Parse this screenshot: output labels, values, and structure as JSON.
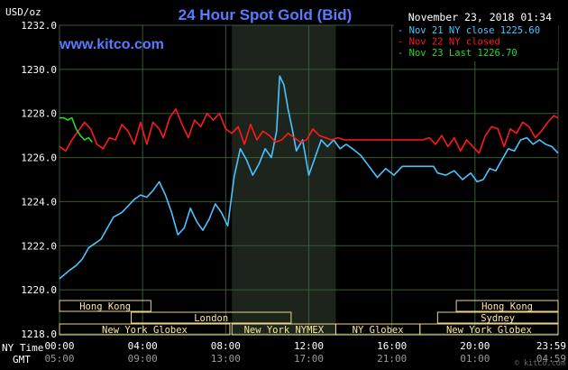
{
  "page": {
    "title": "24 Hour Spot Gold (Bid)",
    "website": "www.kitco.com",
    "date_label": "November 23, 2018 01:34",
    "y_unit": "USD/oz",
    "ny_time_label": "NY Time",
    "gmt_label": "GMT",
    "logo_text": "© kitco.com"
  },
  "colors": {
    "background": "#000000",
    "grid": "#3a5a3a",
    "axis_text": "#ffffff",
    "title": "#5a7bff",
    "website": "#5a7bff",
    "nov21": "#4cc3ff",
    "nov22": "#ff1a1a",
    "nov23": "#2bd52b",
    "session_box": "#e8d68a",
    "session_text": "#ffe9a0",
    "shade": "#1c241c"
  },
  "chart_data": {
    "type": "line",
    "title": "24 Hour Spot Gold (Bid)",
    "xlabel": "NY Time",
    "ylabel": "USD/oz",
    "xlim": [
      0,
      24
    ],
    "ylim": [
      1218,
      1232
    ],
    "y_ticks": [
      "1218.0",
      "1220.0",
      "1222.0",
      "1224.0",
      "1226.0",
      "1228.0",
      "1230.0",
      "1232.0"
    ],
    "y_tick_values": [
      1218,
      1220,
      1222,
      1224,
      1226,
      1228,
      1230,
      1232
    ],
    "x_ticks_ny": [
      "00:00",
      "04:00",
      "08:00",
      "12:00",
      "16:00",
      "20:00",
      "23:59"
    ],
    "x_ticks_gmt": [
      "05:00",
      "09:00",
      "13:00",
      "17:00",
      "21:00",
      "01:00",
      "04:59"
    ],
    "x_tick_values": [
      0,
      4,
      8,
      12,
      16,
      20,
      24
    ],
    "grid": true,
    "legend_position": "top-right",
    "shaded_hours": [
      8.3,
      13.3
    ],
    "series": [
      {
        "name": "Nov 21 NY close 1225.60",
        "color": "#4cc3ff",
        "x": [
          0,
          0.25,
          0.5,
          0.8,
          1.1,
          1.4,
          1.7,
          2.0,
          2.3,
          2.6,
          3.0,
          3.3,
          3.6,
          3.9,
          4.2,
          4.5,
          4.8,
          5.1,
          5.4,
          5.7,
          6.0,
          6.3,
          6.6,
          6.9,
          7.2,
          7.5,
          7.8,
          8.1,
          8.4,
          8.7,
          9.0,
          9.3,
          9.6,
          9.9,
          10.2,
          10.45,
          10.6,
          10.8,
          11.0,
          11.2,
          11.4,
          11.7,
          12.0,
          12.3,
          12.6,
          12.9,
          13.2,
          13.5,
          13.8,
          14.1,
          14.5,
          14.9,
          15.3,
          15.7,
          16.1,
          16.5,
          17.0,
          17.5,
          18.0,
          18.2,
          18.6,
          19.0,
          19.4,
          19.8,
          20.1,
          20.4,
          20.7,
          21.0,
          21.3,
          21.6,
          21.9,
          22.2,
          22.5,
          22.8,
          23.1,
          23.4,
          23.7,
          24.0
        ],
        "values": [
          1220.5,
          1220.7,
          1220.9,
          1221.1,
          1221.4,
          1221.9,
          1222.1,
          1222.3,
          1222.8,
          1223.3,
          1223.5,
          1223.8,
          1224.1,
          1224.3,
          1224.2,
          1224.5,
          1224.9,
          1224.3,
          1223.5,
          1222.5,
          1222.8,
          1223.7,
          1223.1,
          1222.7,
          1223.2,
          1223.9,
          1223.5,
          1222.9,
          1225.1,
          1226.4,
          1225.9,
          1225.2,
          1225.7,
          1226.4,
          1226.0,
          1227.2,
          1229.7,
          1229.3,
          1228.2,
          1227.3,
          1226.3,
          1226.8,
          1225.2,
          1226.0,
          1226.8,
          1226.5,
          1226.8,
          1226.4,
          1226.6,
          1226.4,
          1226.1,
          1225.6,
          1225.1,
          1225.5,
          1225.2,
          1225.6,
          1225.6,
          1225.6,
          1225.6,
          1225.3,
          1225.2,
          1225.4,
          1225.0,
          1225.3,
          1224.9,
          1225.0,
          1225.5,
          1225.4,
          1225.9,
          1226.4,
          1226.3,
          1226.8,
          1226.9,
          1226.6,
          1226.8,
          1226.6,
          1226.5,
          1226.2
        ]
      },
      {
        "name": "Nov 22 NY closed",
        "color": "#ff1a1a",
        "x": [
          0,
          0.3,
          0.6,
          0.9,
          1.2,
          1.5,
          1.8,
          2.1,
          2.4,
          2.7,
          3.0,
          3.3,
          3.6,
          3.9,
          4.2,
          4.5,
          4.8,
          5.0,
          5.3,
          5.6,
          5.9,
          6.2,
          6.5,
          6.8,
          7.1,
          7.4,
          7.7,
          8.0,
          8.3,
          8.6,
          8.9,
          9.2,
          9.5,
          9.8,
          10.1,
          10.4,
          10.7,
          11.0,
          11.3,
          11.6,
          11.9,
          12.2,
          12.5,
          12.8,
          13.1,
          13.4,
          13.7,
          14.0,
          15.0,
          16.0,
          17.0,
          17.5,
          17.8,
          18.1,
          18.4,
          18.7,
          19.0,
          19.3,
          19.6,
          19.9,
          20.2,
          20.5,
          20.8,
          21.1,
          21.4,
          21.7,
          22.0,
          22.3,
          22.6,
          22.9,
          23.2,
          23.5,
          23.8,
          24.0
        ],
        "values": [
          1226.5,
          1226.3,
          1226.8,
          1227.2,
          1227.6,
          1227.3,
          1226.6,
          1226.4,
          1226.9,
          1226.8,
          1227.5,
          1227.2,
          1226.6,
          1227.6,
          1226.6,
          1227.6,
          1227.3,
          1226.9,
          1227.8,
          1228.2,
          1227.5,
          1226.9,
          1227.7,
          1227.4,
          1228.0,
          1227.7,
          1228.0,
          1227.3,
          1227.1,
          1227.4,
          1226.6,
          1227.5,
          1226.8,
          1227.2,
          1227.0,
          1226.7,
          1226.8,
          1227.1,
          1226.9,
          1226.7,
          1226.8,
          1227.3,
          1227.0,
          1226.9,
          1226.8,
          1226.9,
          1226.8,
          1226.8,
          1226.8,
          1226.8,
          1226.8,
          1226.8,
          1226.9,
          1226.6,
          1227.0,
          1226.5,
          1226.9,
          1226.3,
          1226.8,
          1226.5,
          1226.2,
          1227.0,
          1227.4,
          1227.3,
          1226.5,
          1227.3,
          1227.1,
          1227.6,
          1227.4,
          1226.9,
          1227.2,
          1227.6,
          1227.9,
          1227.8
        ]
      },
      {
        "name": "Nov 23 Last 1226.70",
        "color": "#2bd52b",
        "x": [
          0,
          0.2,
          0.4,
          0.6,
          0.8,
          1.0,
          1.2,
          1.4,
          1.57
        ],
        "values": [
          1227.8,
          1227.8,
          1227.7,
          1227.8,
          1227.3,
          1227.0,
          1226.8,
          1226.9,
          1226.7
        ]
      }
    ],
    "sessions_row1": [
      {
        "label": "Hong Kong",
        "start": 0,
        "end": 4.4
      },
      {
        "label": "Hong Kong",
        "start": 19.1,
        "end": 24
      }
    ],
    "sessions_row2": [
      {
        "label": "London",
        "start": 3.45,
        "end": 11.15
      },
      {
        "label": "Sydney",
        "start": 18.2,
        "end": 24
      }
    ],
    "sessions_row3": [
      {
        "label": "New York Globex",
        "start": 0,
        "end": 8.2
      },
      {
        "label": "New York NYMEX",
        "start": 8.3,
        "end": 13.3
      },
      {
        "label": "NY Globex",
        "start": 13.3,
        "end": 17.35
      },
      {
        "label": "New York Globex",
        "start": 17.35,
        "end": 24
      }
    ]
  }
}
